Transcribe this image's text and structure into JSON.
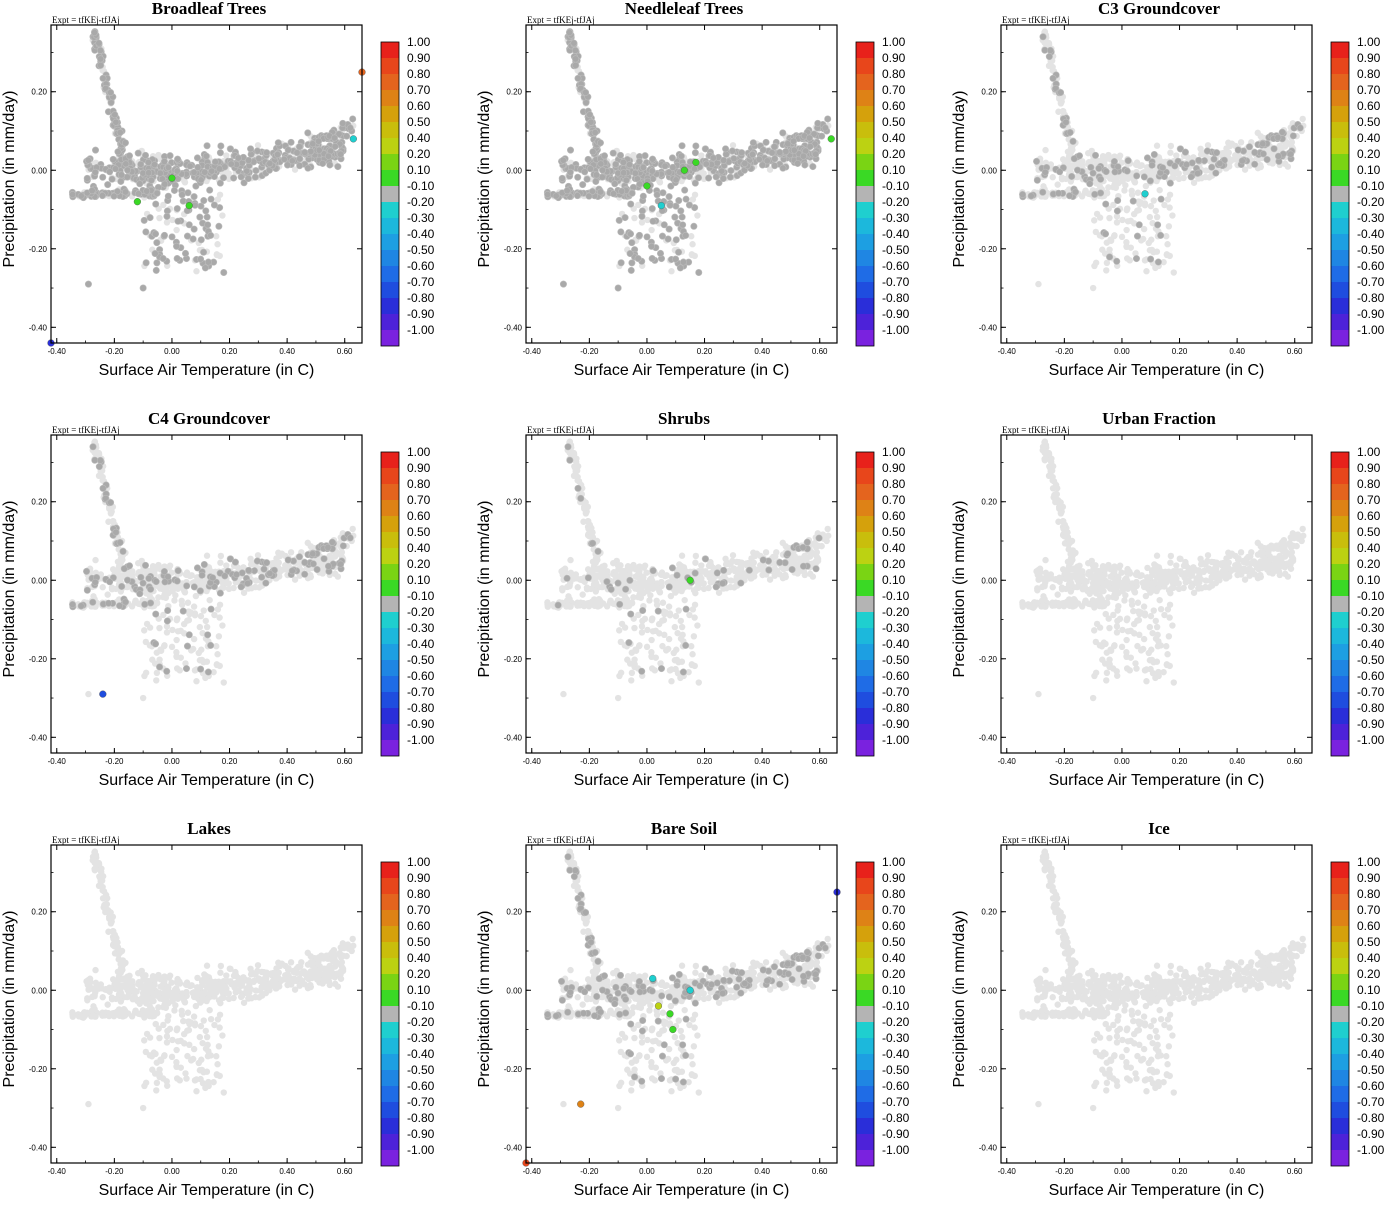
{
  "expt_label": "Expt = tfKEj-tfJAj",
  "colors": {
    "background_points": "#e3e3e3",
    "highlight_points": "#a9a9a9",
    "frame": "#000000"
  },
  "colorbar": {
    "labels": [
      "1.00",
      "0.90",
      "0.80",
      "0.70",
      "0.60",
      "0.50",
      "0.40",
      "0.20",
      "0.10",
      "-0.10",
      "-0.20",
      "-0.30",
      "-0.40",
      "-0.50",
      "-0.60",
      "-0.70",
      "-0.80",
      "-0.90",
      "-1.00"
    ],
    "colors": [
      "#e8211b",
      "#e8461b",
      "#e4641e",
      "#de8216",
      "#d5a10c",
      "#c9be0c",
      "#bcd212",
      "#7ad414",
      "#3ad925",
      "#b4b4b4",
      "#1fcfcf",
      "#1cb8dc",
      "#1d9fe2",
      "#1f86e3",
      "#1f6ce6",
      "#1f4ddf",
      "#2a2ed9",
      "#4d22d9",
      "#7a22df"
    ]
  },
  "chart_data": [
    {
      "type": "scatter",
      "title": "Broadleaf Trees",
      "xlabel": "Surface Air Temperature (in C)",
      "ylabel": "Precipitation (in mm/day)",
      "xlim": [
        -0.42,
        0.66
      ],
      "ylim": [
        -0.44,
        0.37
      ],
      "xticks": [
        "-0.40",
        "-0.20",
        "0.00",
        "0.20",
        "0.40",
        "0.60"
      ],
      "yticks": [
        "0.20",
        "0.00",
        "-0.20",
        "-0.40"
      ],
      "grey_mode": "dense",
      "colored_points": [
        {
          "x": -0.42,
          "y": -0.44,
          "c": "#2a2ed9"
        },
        {
          "x": 0.66,
          "y": 0.25,
          "c": "#e4641e"
        },
        {
          "x": 0.63,
          "y": 0.08,
          "c": "#1fcfcf"
        },
        {
          "x": -0.12,
          "y": -0.08,
          "c": "#3ad925"
        },
        {
          "x": 0.0,
          "y": -0.02,
          "c": "#3ad925"
        },
        {
          "x": 0.06,
          "y": -0.09,
          "c": "#3ad925"
        }
      ]
    },
    {
      "type": "scatter",
      "title": "Needleleaf Trees",
      "xlabel": "Surface Air Temperature (in C)",
      "ylabel": "Precipitation (in mm/day)",
      "xlim": [
        -0.42,
        0.66
      ],
      "ylim": [
        -0.44,
        0.37
      ],
      "xticks": [
        "-0.40",
        "-0.20",
        "0.00",
        "0.20",
        "0.40",
        "0.60"
      ],
      "yticks": [
        "0.20",
        "0.00",
        "-0.20",
        "-0.40"
      ],
      "grey_mode": "dense",
      "colored_points": [
        {
          "x": 0.64,
          "y": 0.08,
          "c": "#3ad925"
        },
        {
          "x": 0.17,
          "y": 0.02,
          "c": "#3ad925"
        },
        {
          "x": 0.13,
          "y": 0.0,
          "c": "#3ad925"
        },
        {
          "x": 0.0,
          "y": -0.04,
          "c": "#3ad925"
        },
        {
          "x": 0.05,
          "y": -0.09,
          "c": "#1fcfcf"
        }
      ]
    },
    {
      "type": "scatter",
      "title": "C3 Groundcover",
      "xlabel": "Surface Air Temperature (in C)",
      "ylabel": "Precipitation (in mm/day)",
      "xlim": [
        -0.42,
        0.66
      ],
      "ylim": [
        -0.44,
        0.37
      ],
      "xticks": [
        "-0.40",
        "-0.20",
        "0.00",
        "0.20",
        "0.40",
        "0.60"
      ],
      "yticks": [
        "0.20",
        "0.00",
        "-0.20",
        "-0.40"
      ],
      "grey_mode": "medium",
      "colored_points": [
        {
          "x": 0.08,
          "y": -0.06,
          "c": "#1fcfcf"
        }
      ]
    },
    {
      "type": "scatter",
      "title": "C4 Groundcover",
      "xlabel": "Surface Air Temperature (in C)",
      "ylabel": "Precipitation (in mm/day)",
      "xlim": [
        -0.42,
        0.66
      ],
      "ylim": [
        -0.44,
        0.37
      ],
      "xticks": [
        "-0.40",
        "-0.20",
        "0.00",
        "0.20",
        "0.40",
        "0.60"
      ],
      "yticks": [
        "0.20",
        "0.00",
        "-0.20",
        "-0.40"
      ],
      "grey_mode": "medium",
      "colored_points": [
        {
          "x": -0.24,
          "y": -0.29,
          "c": "#1f4ddf"
        }
      ]
    },
    {
      "type": "scatter",
      "title": "Shrubs",
      "xlabel": "Surface Air Temperature (in C)",
      "ylabel": "Precipitation (in mm/day)",
      "xlim": [
        -0.42,
        0.66
      ],
      "ylim": [
        -0.44,
        0.37
      ],
      "xticks": [
        "-0.40",
        "-0.20",
        "0.00",
        "0.20",
        "0.40",
        "0.60"
      ],
      "yticks": [
        "0.20",
        "0.00",
        "-0.20",
        "-0.40"
      ],
      "grey_mode": "sparse",
      "colored_points": [
        {
          "x": 0.15,
          "y": 0.0,
          "c": "#3ad925"
        }
      ]
    },
    {
      "type": "scatter",
      "title": "Urban Fraction",
      "xlabel": "Surface Air Temperature (in C)",
      "ylabel": "Precipitation (in mm/day)",
      "xlim": [
        -0.42,
        0.66
      ],
      "ylim": [
        -0.44,
        0.37
      ],
      "xticks": [
        "-0.40",
        "-0.20",
        "0.00",
        "0.20",
        "0.40",
        "0.60"
      ],
      "yticks": [
        "0.20",
        "0.00",
        "-0.20",
        "-0.40"
      ],
      "grey_mode": "none",
      "colored_points": []
    },
    {
      "type": "scatter",
      "title": "Lakes",
      "xlabel": "Surface Air Temperature (in C)",
      "ylabel": "Precipitation (in mm/day)",
      "xlim": [
        -0.42,
        0.66
      ],
      "ylim": [
        -0.44,
        0.37
      ],
      "xticks": [
        "-0.40",
        "-0.20",
        "0.00",
        "0.20",
        "0.40",
        "0.60"
      ],
      "yticks": [
        "0.20",
        "0.00",
        "-0.20",
        "-0.40"
      ],
      "grey_mode": "none",
      "colored_points": []
    },
    {
      "type": "scatter",
      "title": "Bare Soil",
      "xlabel": "Surface Air Temperature (in C)",
      "ylabel": "Precipitation (in mm/day)",
      "xlim": [
        -0.42,
        0.66
      ],
      "ylim": [
        -0.44,
        0.37
      ],
      "xticks": [
        "-0.40",
        "-0.20",
        "0.00",
        "0.20",
        "0.40",
        "0.60"
      ],
      "yticks": [
        "0.20",
        "0.00",
        "-0.20",
        "-0.40"
      ],
      "grey_mode": "medium",
      "colored_points": [
        {
          "x": 0.66,
          "y": 0.25,
          "c": "#2a2ed9"
        },
        {
          "x": -0.42,
          "y": -0.44,
          "c": "#e8461b"
        },
        {
          "x": -0.23,
          "y": -0.29,
          "c": "#de8216"
        },
        {
          "x": 0.02,
          "y": 0.03,
          "c": "#1fcfcf"
        },
        {
          "x": 0.15,
          "y": 0.0,
          "c": "#1fcfcf"
        },
        {
          "x": 0.04,
          "y": -0.04,
          "c": "#bcd212"
        },
        {
          "x": 0.08,
          "y": -0.06,
          "c": "#3ad925"
        },
        {
          "x": 0.09,
          "y": -0.1,
          "c": "#3ad925"
        }
      ]
    },
    {
      "type": "scatter",
      "title": "Ice",
      "xlabel": "Surface Air Temperature (in C)",
      "ylabel": "Precipitation (in mm/day)",
      "xlim": [
        -0.42,
        0.66
      ],
      "ylim": [
        -0.44,
        0.37
      ],
      "xticks": [
        "-0.40",
        "-0.20",
        "0.00",
        "0.20",
        "0.40",
        "0.60"
      ],
      "yticks": [
        "0.20",
        "0.00",
        "-0.20",
        "-0.40"
      ],
      "grey_mode": "none",
      "colored_points": []
    }
  ]
}
